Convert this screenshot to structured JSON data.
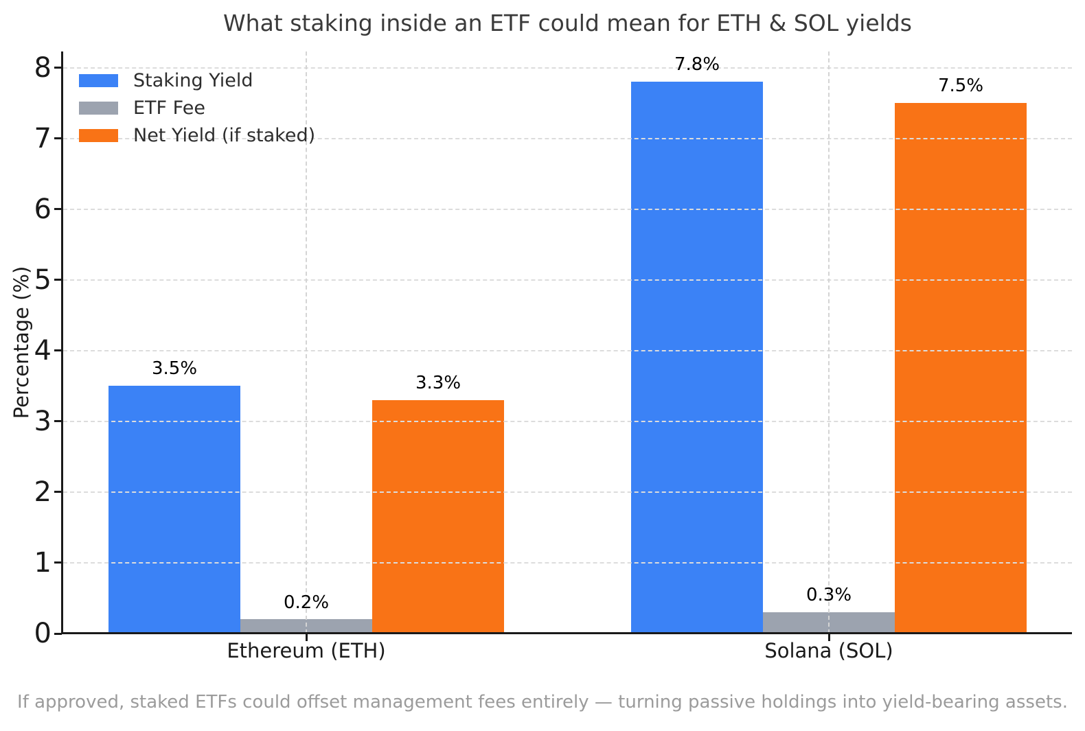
{
  "title": "What staking inside an ETF could mean for ETH & SOL yields",
  "caption": "If approved, staked ETFs could offset management fees entirely — turning passive holdings into yield-bearing assets.",
  "chart_data": {
    "type": "bar",
    "categories": [
      "Ethereum (ETH)",
      "Solana (SOL)"
    ],
    "series": [
      {
        "name": "Staking Yield",
        "color": "#3b82f6",
        "values": [
          3.5,
          7.8
        ],
        "labels": [
          "3.5%",
          "7.8%"
        ]
      },
      {
        "name": "ETF Fee",
        "color": "#9ca3af",
        "values": [
          0.2,
          0.3
        ],
        "labels": [
          "0.2%",
          "0.3%"
        ]
      },
      {
        "name": "Net Yield (if staked)",
        "color": "#f97316",
        "values": [
          3.3,
          7.5
        ],
        "labels": [
          "3.3%",
          "7.5%"
        ]
      }
    ],
    "xlabel": "",
    "ylabel": "Percentage (%)",
    "ylim": [
      0,
      8.23
    ],
    "yticks": [
      0,
      1,
      2,
      3,
      4,
      5,
      6,
      7,
      8
    ],
    "grid": true,
    "legend_position": "upper left",
    "legend_frame": false
  }
}
